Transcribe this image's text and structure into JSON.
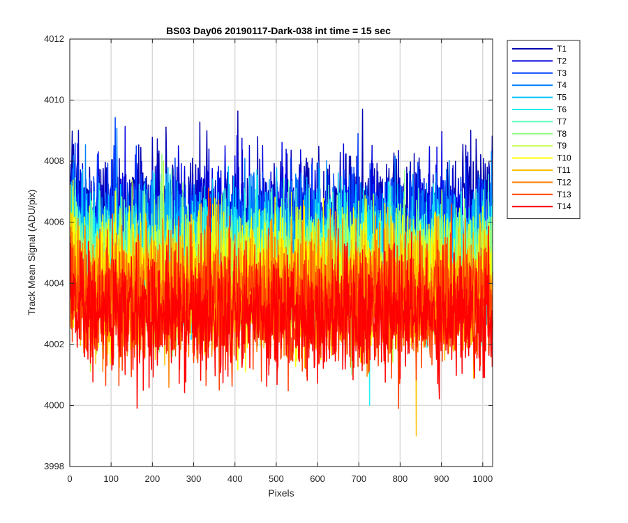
{
  "chart_data": {
    "type": "line",
    "title": "BS03 Day06 20190117-Dark-038 int time = 15 sec",
    "xlabel": "Pixels",
    "ylabel": "Track Mean Signal (ADU/pix)",
    "xlim": [
      0,
      1024
    ],
    "ylim": [
      3998,
      4012
    ],
    "x_ticks": [
      0,
      100,
      200,
      300,
      400,
      500,
      600,
      700,
      800,
      900,
      1000
    ],
    "y_ticks": [
      3998,
      4000,
      4002,
      4004,
      4006,
      4008,
      4010,
      4012
    ],
    "grid": true,
    "legend_position": "outside-right",
    "n_points": 1024,
    "series": [
      {
        "name": "T1",
        "color": "#0000b0",
        "mean": 4006.3,
        "spread": 1.0
      },
      {
        "name": "T2",
        "color": "#0000e0",
        "mean": 4006.0,
        "spread": 1.0
      },
      {
        "name": "T3",
        "color": "#0040ff",
        "mean": 4005.6,
        "spread": 1.0
      },
      {
        "name": "T4",
        "color": "#0080ff",
        "mean": 4005.3,
        "spread": 1.0
      },
      {
        "name": "T5",
        "color": "#00c0ff",
        "mean": 4005.0,
        "spread": 1.0
      },
      {
        "name": "T6",
        "color": "#20f0f0",
        "mean": 4004.8,
        "spread": 1.0
      },
      {
        "name": "T7",
        "color": "#60ffc0",
        "mean": 4004.6,
        "spread": 1.0
      },
      {
        "name": "T8",
        "color": "#90ff80",
        "mean": 4004.4,
        "spread": 1.0
      },
      {
        "name": "T9",
        "color": "#c0ff40",
        "mean": 4004.2,
        "spread": 1.0
      },
      {
        "name": "T10",
        "color": "#ffff00",
        "mean": 4004.0,
        "spread": 1.0
      },
      {
        "name": "T11",
        "color": "#ffc000",
        "mean": 4003.8,
        "spread": 1.0
      },
      {
        "name": "T12",
        "color": "#ff8000",
        "mean": 4003.6,
        "spread": 1.0
      },
      {
        "name": "T13",
        "color": "#ff4000",
        "mean": 4003.3,
        "spread": 1.0
      },
      {
        "name": "T14",
        "color": "#ff0000",
        "mean": 4003.0,
        "spread": 1.0
      }
    ]
  }
}
